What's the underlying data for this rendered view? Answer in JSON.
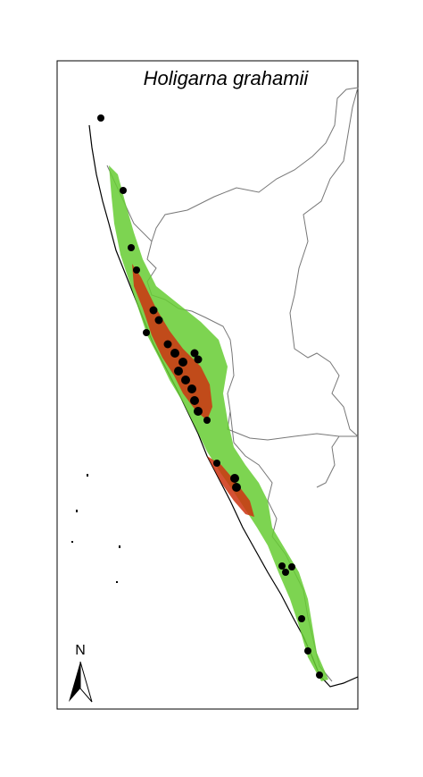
{
  "header": {
    "title": "Holigarna grahamii"
  },
  "north_arrow": {
    "label": "N"
  }
}
